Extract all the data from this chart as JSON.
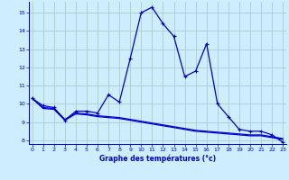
{
  "xlabel": "Graphe des températures (°c)",
  "x_ticks": [
    0,
    1,
    2,
    3,
    4,
    5,
    6,
    7,
    8,
    9,
    10,
    11,
    12,
    13,
    14,
    15,
    16,
    17,
    18,
    19,
    20,
    21,
    22,
    23
  ],
  "xlim": [
    -0.3,
    23.3
  ],
  "ylim": [
    7.8,
    15.6
  ],
  "y_ticks": [
    8,
    9,
    10,
    11,
    12,
    13,
    14,
    15
  ],
  "bg_color": "#cceeff",
  "grid_color": "#aacccc",
  "line_color": "#0000cc",
  "main_temps": [
    10.3,
    9.9,
    9.8,
    9.1,
    9.6,
    9.6,
    9.5,
    10.5,
    10.1,
    12.5,
    15.0,
    15.3,
    14.4,
    13.7,
    11.5,
    11.8,
    13.3,
    10.0,
    9.3,
    8.6,
    8.5,
    8.5,
    8.3,
    7.9
  ],
  "line2_temps": [
    10.3,
    9.8,
    9.75,
    9.15,
    9.5,
    9.45,
    9.35,
    9.3,
    9.25,
    9.15,
    9.05,
    8.95,
    8.85,
    8.75,
    8.65,
    8.55,
    8.5,
    8.45,
    8.4,
    8.35,
    8.3,
    8.3,
    8.2,
    8.1
  ],
  "line3_temps": [
    10.3,
    9.75,
    9.7,
    9.1,
    9.45,
    9.4,
    9.3,
    9.25,
    9.2,
    9.1,
    9.0,
    8.9,
    8.8,
    8.7,
    8.6,
    8.5,
    8.45,
    8.4,
    8.35,
    8.3,
    8.25,
    8.25,
    8.15,
    8.05
  ]
}
